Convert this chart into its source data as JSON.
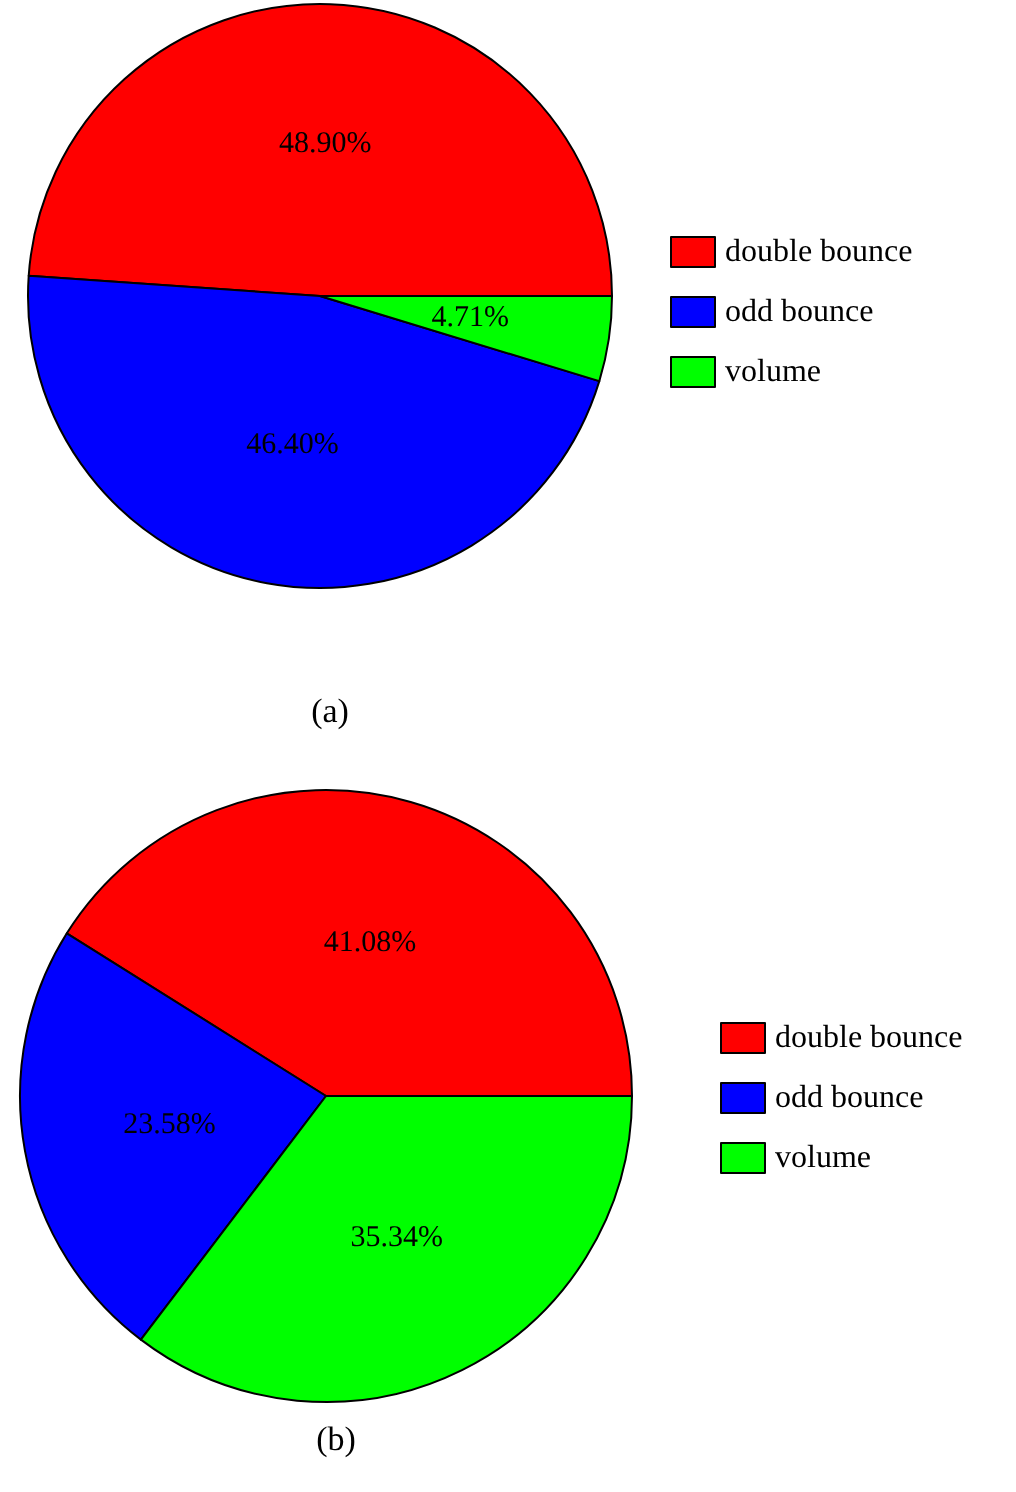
{
  "chart_data": [
    {
      "type": "pie",
      "title": "(a)",
      "categories": [
        "double bounce",
        "odd bounce",
        "volume"
      ],
      "values": [
        48.9,
        46.4,
        4.71
      ],
      "colors": [
        "#ff0000",
        "#0000ff",
        "#00ff00"
      ],
      "value_labels": [
        "48.90%",
        "46.40%",
        "4.71%"
      ],
      "legend": "right"
    },
    {
      "type": "pie",
      "title": "(b)",
      "categories": [
        "double bounce",
        "odd bounce",
        "volume"
      ],
      "values": [
        41.08,
        23.58,
        35.34
      ],
      "colors": [
        "#ff0000",
        "#0000ff",
        "#00ff00"
      ],
      "value_labels": [
        "41.08%",
        "23.58%",
        "35.34%"
      ],
      "legend": "right"
    }
  ]
}
